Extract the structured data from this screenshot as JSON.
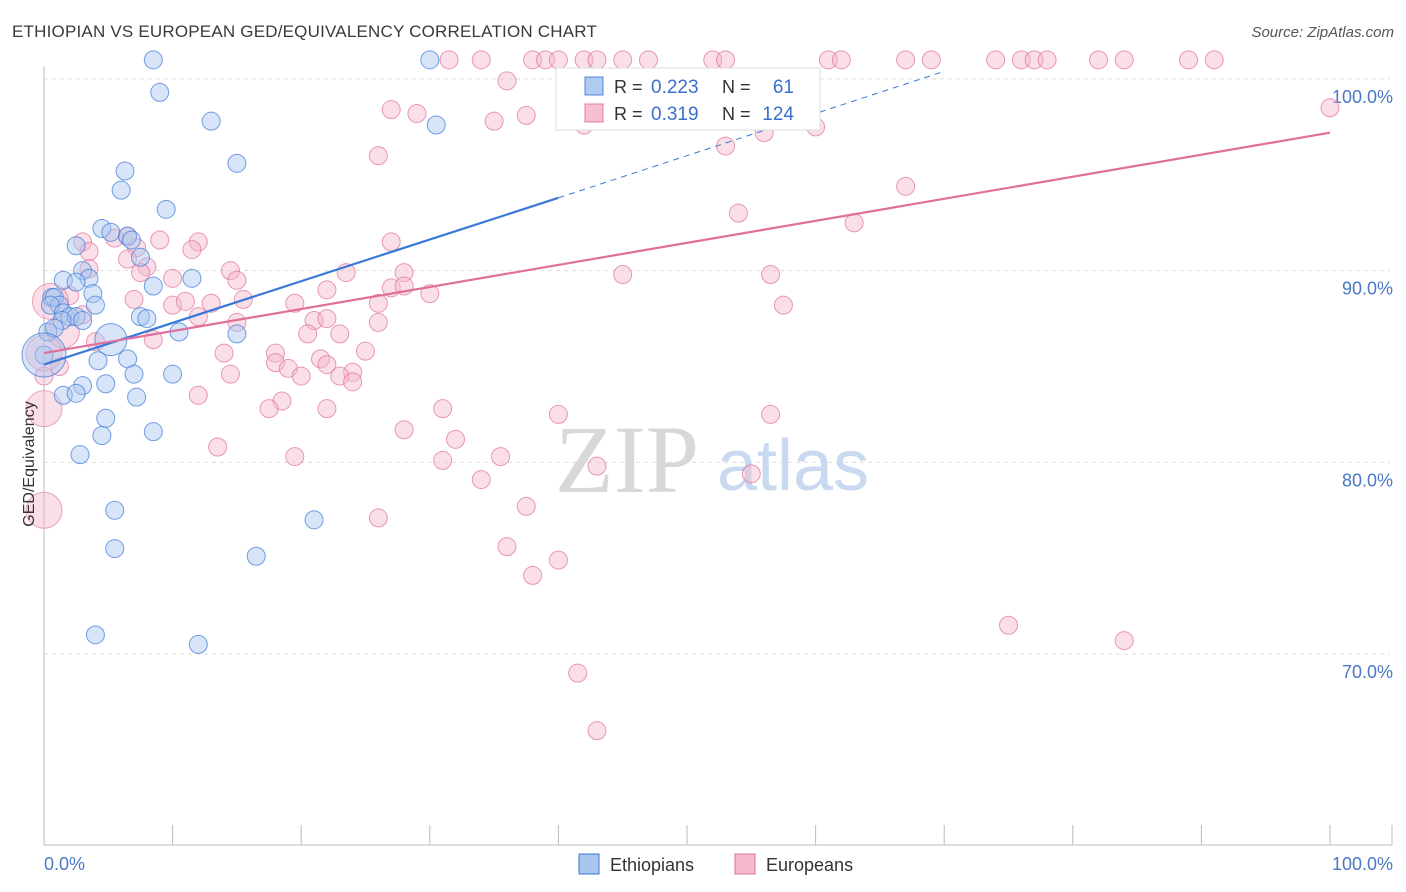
{
  "title": "ETHIOPIAN VS EUROPEAN GED/EQUIVALENCY CORRELATION CHART",
  "source": "Source: ZipAtlas.com",
  "watermark": {
    "zip": "ZIP",
    "atlas": "atlas"
  },
  "colors": {
    "ethiopians": "#3a78d8",
    "ethiopians_fill": "#a9c6ef",
    "europeans": "#e0709a",
    "europeans_fill": "#f5b8cd",
    "grid": "#dddddd",
    "axis": "#bbbbbb"
  },
  "stats_legend": [
    {
      "r_label": "R =",
      "r_value": "0.223",
      "n_label": "N =",
      "n_value": "61"
    },
    {
      "r_label": "R =",
      "r_value": "0.319",
      "n_label": "N =",
      "n_value": "124"
    }
  ],
  "chart_data": {
    "type": "scatter",
    "xlabel": "",
    "ylabel": "GED/Equivalency",
    "xlim": [
      0,
      100
    ],
    "ylim": [
      60.5,
      101.5
    ],
    "x_tick_labels": [
      {
        "value": 0,
        "label": "0.0%"
      },
      {
        "value": 100,
        "label": "100.0%"
      }
    ],
    "y_tick_labels": [
      {
        "value": 100,
        "label": "100.0%"
      },
      {
        "value": 90,
        "label": "90.0%"
      },
      {
        "value": 80,
        "label": "80.0%"
      },
      {
        "value": 70,
        "label": "70.0%"
      }
    ],
    "legend": [
      "Ethiopians",
      "Europeans"
    ],
    "series": [
      {
        "name": "Ethiopians",
        "trend": {
          "x0": 0,
          "y0": 85.1,
          "x1": 40,
          "y1": 93.8,
          "dash_to_x": 70,
          "dash_to_y": 100.4
        },
        "points": [
          [
            8.5,
            101
          ],
          [
            30,
            101
          ],
          [
            9,
            99.3
          ],
          [
            13,
            97.8
          ],
          [
            30.5,
            97.6
          ],
          [
            15,
            95.6
          ],
          [
            6.3,
            95.2
          ],
          [
            6,
            94.2
          ],
          [
            9.5,
            93.2
          ],
          [
            4.5,
            92.2
          ],
          [
            5.2,
            92
          ],
          [
            6.5,
            91.8
          ],
          [
            6.8,
            91.6
          ],
          [
            2.5,
            91.3
          ],
          [
            7.5,
            90.7
          ],
          [
            3,
            90
          ],
          [
            1.5,
            89.5
          ],
          [
            3.5,
            89.6
          ],
          [
            2.5,
            89.4
          ],
          [
            11.5,
            89.6
          ],
          [
            8.5,
            89.2
          ],
          [
            0.6,
            88.6
          ],
          [
            0.8,
            88.6
          ],
          [
            1.2,
            88.2
          ],
          [
            3.8,
            88.8
          ],
          [
            4,
            88.2
          ],
          [
            0.5,
            88.2
          ],
          [
            1.5,
            87.8
          ],
          [
            2,
            87.6
          ],
          [
            2.5,
            87.6
          ],
          [
            7.5,
            87.6
          ],
          [
            10.5,
            86.8
          ],
          [
            8,
            87.5
          ],
          [
            3,
            87.4
          ],
          [
            1.4,
            87.4
          ],
          [
            0.3,
            86.8
          ],
          [
            0.8,
            87
          ],
          [
            5.2,
            86.4
          ],
          [
            15,
            86.7
          ],
          [
            0,
            85.6
          ],
          [
            6.5,
            85.4
          ],
          [
            4.2,
            85.3
          ],
          [
            7,
            84.6
          ],
          [
            10,
            84.6
          ],
          [
            4.8,
            84.1
          ],
          [
            3,
            84
          ],
          [
            1.5,
            83.5
          ],
          [
            2.5,
            83.6
          ],
          [
            7.2,
            83.4
          ],
          [
            4.8,
            82.3
          ],
          [
            8.5,
            81.6
          ],
          [
            4.5,
            81.4
          ],
          [
            2.8,
            80.4
          ],
          [
            5.5,
            77.5
          ],
          [
            21,
            77
          ],
          [
            5.5,
            75.5
          ],
          [
            16.5,
            75.1
          ],
          [
            4,
            71
          ],
          [
            12,
            70.5
          ],
          [
            0,
            85.6
          ]
        ],
        "sizes": [
          9,
          9,
          9,
          9,
          9,
          9,
          9,
          9,
          9,
          9,
          9,
          9,
          9,
          9,
          9,
          9,
          9,
          9,
          9,
          9,
          9,
          9,
          9,
          9,
          9,
          9,
          9,
          9,
          9,
          9,
          9,
          9,
          9,
          9,
          9,
          9,
          9,
          16,
          9,
          9,
          9,
          9,
          9,
          9,
          9,
          9,
          9,
          9,
          9,
          9,
          9,
          9,
          9,
          9,
          9,
          9,
          9,
          9,
          9,
          22
        ]
      },
      {
        "name": "Europeans",
        "trend": {
          "x0": 0,
          "y0": 85.7,
          "x1": 100,
          "y1": 97.2
        },
        "points": [
          [
            31.5,
            101
          ],
          [
            34,
            101
          ],
          [
            38,
            101
          ],
          [
            39,
            101
          ],
          [
            40,
            101
          ],
          [
            42,
            101
          ],
          [
            43,
            101
          ],
          [
            45,
            101
          ],
          [
            47,
            101
          ],
          [
            52,
            101
          ],
          [
            53,
            101
          ],
          [
            61,
            101
          ],
          [
            62,
            101
          ],
          [
            67,
            101
          ],
          [
            69,
            101
          ],
          [
            74,
            101
          ],
          [
            76,
            101
          ],
          [
            77,
            101
          ],
          [
            78,
            101
          ],
          [
            82,
            101
          ],
          [
            84,
            101
          ],
          [
            89,
            101
          ],
          [
            91,
            101
          ],
          [
            36,
            99.9
          ],
          [
            27,
            98.4
          ],
          [
            29,
            98.2
          ],
          [
            37.5,
            98.1
          ],
          [
            35,
            97.8
          ],
          [
            42,
            97.6
          ],
          [
            60,
            97.5
          ],
          [
            56,
            97.2
          ],
          [
            53,
            96.5
          ],
          [
            26,
            96
          ],
          [
            100,
            98.5
          ],
          [
            67,
            94.4
          ],
          [
            54,
            93
          ],
          [
            63,
            92.5
          ],
          [
            5.5,
            91.7
          ],
          [
            9,
            91.6
          ],
          [
            3,
            91.5
          ],
          [
            6.5,
            91.8
          ],
          [
            27,
            91.5
          ],
          [
            12,
            91.5
          ],
          [
            11.5,
            91.1
          ],
          [
            3.5,
            91
          ],
          [
            7.2,
            91.2
          ],
          [
            6.5,
            90.6
          ],
          [
            8,
            90.2
          ],
          [
            3.5,
            90.1
          ],
          [
            10,
            89.6
          ],
          [
            7.5,
            89.9
          ],
          [
            14.5,
            90
          ],
          [
            23.5,
            89.9
          ],
          [
            28,
            89.9
          ],
          [
            45,
            89.8
          ],
          [
            56.5,
            89.8
          ],
          [
            15,
            89.5
          ],
          [
            22,
            89
          ],
          [
            27,
            89.1
          ],
          [
            28,
            89.2
          ],
          [
            30,
            88.8
          ],
          [
            2,
            88.7
          ],
          [
            7,
            88.5
          ],
          [
            10,
            88.2
          ],
          [
            11,
            88.4
          ],
          [
            13,
            88.3
          ],
          [
            15.5,
            88.5
          ],
          [
            19.5,
            88.3
          ],
          [
            26,
            88.3
          ],
          [
            57.5,
            88.2
          ],
          [
            3,
            87.7
          ],
          [
            12,
            87.6
          ],
          [
            15,
            87.3
          ],
          [
            21,
            87.4
          ],
          [
            22,
            87.5
          ],
          [
            26,
            87.3
          ],
          [
            23,
            86.7
          ],
          [
            1.5,
            86.8
          ],
          [
            4,
            86.3
          ],
          [
            8.5,
            86.4
          ],
          [
            20.5,
            86.7
          ],
          [
            14,
            85.7
          ],
          [
            18,
            85.7
          ],
          [
            25,
            85.8
          ],
          [
            1.2,
            85
          ],
          [
            0,
            84.5
          ],
          [
            21.5,
            85.4
          ],
          [
            14.5,
            84.6
          ],
          [
            18,
            85.2
          ],
          [
            19,
            84.9
          ],
          [
            24,
            84.7
          ],
          [
            20,
            84.5
          ],
          [
            22,
            85.1
          ],
          [
            23,
            84.5
          ],
          [
            24,
            84.2
          ],
          [
            12,
            83.5
          ],
          [
            18.5,
            83.2
          ],
          [
            31,
            82.8
          ],
          [
            40,
            82.5
          ],
          [
            17.5,
            82.8
          ],
          [
            56.5,
            82.5
          ],
          [
            22,
            82.8
          ],
          [
            28,
            81.7
          ],
          [
            32,
            81.2
          ],
          [
            13.5,
            80.8
          ],
          [
            19.5,
            80.3
          ],
          [
            35.5,
            80.3
          ],
          [
            31,
            80.1
          ],
          [
            43,
            79.8
          ],
          [
            55,
            79.4
          ],
          [
            34,
            79.1
          ],
          [
            37.5,
            77.7
          ],
          [
            26,
            77.1
          ],
          [
            36,
            75.6
          ],
          [
            40,
            74.9
          ],
          [
            38,
            74.1
          ],
          [
            75,
            71.5
          ],
          [
            84,
            70.7
          ],
          [
            41.5,
            69
          ],
          [
            43,
            66
          ]
        ],
        "sizes": [
          9,
          9,
          9,
          9,
          9,
          9,
          9,
          9,
          9,
          9,
          9,
          9,
          9,
          9,
          9,
          9,
          9,
          9,
          9,
          9,
          9,
          9,
          9,
          9,
          9,
          9,
          9,
          9,
          9,
          9,
          9,
          9,
          9,
          9,
          9,
          9,
          9,
          9,
          9,
          9,
          9,
          9,
          9,
          9,
          9,
          9,
          9,
          9,
          9,
          9,
          9,
          9,
          9,
          9,
          9,
          9,
          9,
          9,
          9,
          9,
          9,
          9,
          9,
          9,
          9,
          9,
          9,
          9,
          9,
          9,
          9,
          9,
          9,
          9,
          9,
          9,
          9,
          16,
          9,
          9,
          9,
          9,
          9,
          9,
          9,
          9,
          9,
          9,
          9,
          9,
          9,
          9,
          9,
          9,
          9,
          9,
          9,
          9,
          9,
          9,
          9,
          9,
          9,
          9,
          9,
          9,
          9,
          9,
          9,
          9,
          9,
          9,
          9,
          9,
          9,
          9,
          9,
          9,
          9,
          9,
          9,
          9
        ]
      }
    ],
    "extra_large_europeans": [
      [
        0,
        85.7
      ],
      [
        0,
        82.8
      ],
      [
        0,
        77.5
      ],
      [
        0.5,
        88.4
      ]
    ]
  }
}
